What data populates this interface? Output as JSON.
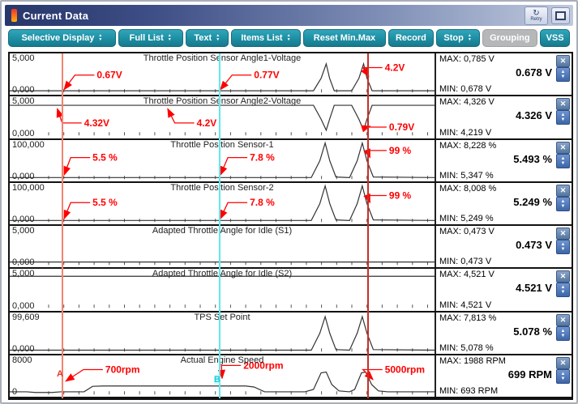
{
  "window": {
    "title": "Current Data",
    "retry_label": "Retry"
  },
  "toolbar": {
    "buttons": [
      {
        "label": "Selective Display",
        "spinner": true,
        "disabled": false
      },
      {
        "label": "Full List",
        "spinner": true,
        "disabled": false
      },
      {
        "label": "Text",
        "spinner": true,
        "disabled": false
      },
      {
        "label": "Items List",
        "spinner": true,
        "disabled": false
      },
      {
        "label": "Reset Min.Max",
        "spinner": false,
        "disabled": false
      },
      {
        "label": "Record",
        "spinner": false,
        "disabled": false
      },
      {
        "label": "Stop",
        "spinner": true,
        "disabled": false
      },
      {
        "label": "Grouping",
        "spinner": false,
        "disabled": true
      },
      {
        "label": "VSS",
        "spinner": false,
        "disabled": false
      }
    ]
  },
  "cursors": {
    "a_label": "A",
    "b_label": "B"
  },
  "colors": {
    "toolbar_teal": "#1D8EA3",
    "disabled_gray": "#B5B7B9",
    "annotation_red": "#FF0000",
    "cursor_a": "#F2846F",
    "cursor_b": "#5FE8EC",
    "cursor_c": "#C63028",
    "close_button_blue": "#54779F",
    "scale_button_blue": "#3C66A8"
  },
  "rows": [
    {
      "title": "Throttle Position Sensor Angle1-Voltage",
      "y_max": "5,000",
      "y_min": "0,000",
      "max_label": "MAX: 0,785 V",
      "value": "0.678 V",
      "min_label": "MIN: 0,678 V",
      "trace": [
        [
          0,
          0.9
        ],
        [
          0.715,
          0.9
        ],
        [
          0.733,
          0.6
        ],
        [
          0.745,
          0.25
        ],
        [
          0.753,
          0.6
        ],
        [
          0.764,
          0.9
        ],
        [
          0.805,
          0.9
        ],
        [
          0.822,
          0.6
        ],
        [
          0.833,
          0.25
        ],
        [
          0.841,
          0.6
        ],
        [
          0.853,
          0.9
        ],
        [
          1,
          0.9
        ]
      ],
      "annotations": [
        {
          "text": "0.67V",
          "lx": 0.205,
          "ly": 0.6,
          "tx": 0.128,
          "ty": 0.87
        },
        {
          "text": "0.77V",
          "lx": 0.575,
          "ly": 0.6,
          "tx": 0.496,
          "ty": 0.87
        },
        {
          "text": "4.2V",
          "lx": 0.883,
          "ly": 0.42,
          "tx": 0.845,
          "ty": 0.55
        }
      ]
    },
    {
      "title": "Throttle Position Sensor Angle2-Voltage",
      "y_max": "5,000",
      "y_min": "0,000",
      "max_label": "MAX: 4,326 V",
      "value": "4.326 V",
      "min_label": "MIN: 4,219 V",
      "trace": [
        [
          0,
          0.215
        ],
        [
          0.715,
          0.215
        ],
        [
          0.733,
          0.55
        ],
        [
          0.745,
          0.816
        ],
        [
          0.753,
          0.55
        ],
        [
          0.764,
          0.215
        ],
        [
          0.805,
          0.215
        ],
        [
          0.822,
          0.55
        ],
        [
          0.833,
          0.816
        ],
        [
          0.841,
          0.55
        ],
        [
          0.853,
          0.215
        ],
        [
          1,
          0.215
        ]
      ],
      "annotations": [
        {
          "text": "4.32V",
          "lx": 0.175,
          "ly": 0.72,
          "tx": 0.112,
          "ty": 0.3
        },
        {
          "text": "4.2V",
          "lx": 0.44,
          "ly": 0.72,
          "tx": 0.372,
          "ty": 0.3
        },
        {
          "text": "0.79V",
          "lx": 0.893,
          "ly": 0.82,
          "tx": 0.848,
          "ty": 0.72
        }
      ]
    },
    {
      "title": "Throttle Position Sensor-1",
      "y_max": "100,000",
      "y_min": "0,000",
      "max_label": "MAX: 8,228 %",
      "value": "5.493 %",
      "min_label": "MIN: 5,347 %",
      "trace": [
        [
          0,
          0.904
        ],
        [
          0.71,
          0.904
        ],
        [
          0.73,
          0.5
        ],
        [
          0.7425,
          0.07
        ],
        [
          0.7535,
          0.5
        ],
        [
          0.768,
          0.89
        ],
        [
          0.8,
          0.904
        ],
        [
          0.818,
          0.5
        ],
        [
          0.83,
          0.07
        ],
        [
          0.841,
          0.5
        ],
        [
          0.856,
          0.89
        ],
        [
          1,
          0.904
        ]
      ],
      "annotations": [
        {
          "text": "5.5 %",
          "lx": 0.195,
          "ly": 0.5,
          "tx": 0.128,
          "ty": 0.84
        },
        {
          "text": "7.8 %",
          "lx": 0.565,
          "ly": 0.5,
          "tx": 0.496,
          "ty": 0.84
        },
        {
          "text": "99 %",
          "lx": 0.893,
          "ly": 0.33,
          "tx": 0.848,
          "ty": 0.42
        }
      ]
    },
    {
      "title": "Throttle Position Sensor-2",
      "y_max": "100,000",
      "y_min": "0,000",
      "max_label": "MAX: 8,008 %",
      "value": "5.249 %",
      "min_label": "MIN: 5,249 %",
      "trace": [
        [
          0,
          0.904
        ],
        [
          0.71,
          0.904
        ],
        [
          0.73,
          0.5
        ],
        [
          0.7425,
          0.07
        ],
        [
          0.7535,
          0.5
        ],
        [
          0.768,
          0.89
        ],
        [
          0.8,
          0.904
        ],
        [
          0.818,
          0.5
        ],
        [
          0.83,
          0.07
        ],
        [
          0.841,
          0.5
        ],
        [
          0.856,
          0.89
        ],
        [
          1,
          0.904
        ]
      ],
      "annotations": [
        {
          "text": "5.5 %",
          "lx": 0.195,
          "ly": 0.55,
          "tx": 0.128,
          "ty": 0.86
        },
        {
          "text": "7.8 %",
          "lx": 0.565,
          "ly": 0.55,
          "tx": 0.496,
          "ty": 0.86
        },
        {
          "text": "99 %",
          "lx": 0.893,
          "ly": 0.38,
          "tx": 0.848,
          "ty": 0.47
        }
      ]
    },
    {
      "title": "Adapted Throttle Angle for Idle (S1)",
      "y_max": "5,000",
      "y_min": "0,000",
      "max_label": "MAX: 0,473 V",
      "value": "0.473 V",
      "min_label": "MIN: 0,473 V",
      "trace": [
        [
          0,
          0.87
        ],
        [
          1,
          0.87
        ]
      ],
      "annotations": []
    },
    {
      "title": "Adapted Throttle Angle for Idle (S2)",
      "y_max": "5,000",
      "y_min": "0,000",
      "max_label": "MAX: 4,521 V",
      "value": "4.521 V",
      "min_label": "MIN: 4,521 V",
      "trace": [
        [
          0,
          0.18
        ],
        [
          1,
          0.18
        ]
      ],
      "annotations": []
    },
    {
      "title": "TPS Set Point",
      "y_max": "99,609",
      "y_min": "0,000",
      "max_label": "MAX: 7,813 %",
      "value": "5.078 %",
      "min_label": "MIN: 5,078 %",
      "trace": [
        [
          0,
          0.907
        ],
        [
          0.71,
          0.907
        ],
        [
          0.73,
          0.5
        ],
        [
          0.7425,
          0.1
        ],
        [
          0.7535,
          0.5
        ],
        [
          0.768,
          0.895
        ],
        [
          0.8,
          0.907
        ],
        [
          0.818,
          0.5
        ],
        [
          0.83,
          0.1
        ],
        [
          0.841,
          0.5
        ],
        [
          0.856,
          0.895
        ],
        [
          1,
          0.907
        ]
      ],
      "annotations": []
    },
    {
      "title": "Actual Engine Speed",
      "y_max": "8000",
      "y_min": "0",
      "max_label": "MAX: 1988 RPM",
      "value": "699 RPM",
      "min_label": "MIN: 693 RPM",
      "trace": [
        [
          0,
          0.876
        ],
        [
          0.04,
          0.876
        ],
        [
          0.06,
          0.893
        ],
        [
          0.1,
          0.893
        ],
        [
          0.12,
          0.876
        ],
        [
          0.175,
          0.876
        ],
        [
          0.195,
          0.745
        ],
        [
          0.22,
          0.737
        ],
        [
          0.555,
          0.737
        ],
        [
          0.575,
          0.76
        ],
        [
          0.6,
          0.876
        ],
        [
          0.695,
          0.876
        ],
        [
          0.715,
          0.82
        ],
        [
          0.733,
          0.42
        ],
        [
          0.745,
          0.4
        ],
        [
          0.758,
          0.7
        ],
        [
          0.775,
          0.855
        ],
        [
          0.8,
          0.876
        ],
        [
          0.812,
          0.82
        ],
        [
          0.828,
          0.42
        ],
        [
          0.838,
          0.4
        ],
        [
          0.852,
          0.7
        ],
        [
          0.868,
          0.855
        ],
        [
          0.89,
          0.876
        ],
        [
          1,
          0.876
        ]
      ],
      "annotations": [
        {
          "text": "700rpm",
          "lx": 0.225,
          "ly": 0.42,
          "tx": 0.132,
          "ty": 0.62
        },
        {
          "text": "2000rpm",
          "lx": 0.55,
          "ly": 0.32,
          "tx": 0.5,
          "ty": 0.55
        },
        {
          "text": "5000rpm",
          "lx": 0.883,
          "ly": 0.42,
          "tx": 0.855,
          "ty": 0.58
        }
      ]
    }
  ]
}
